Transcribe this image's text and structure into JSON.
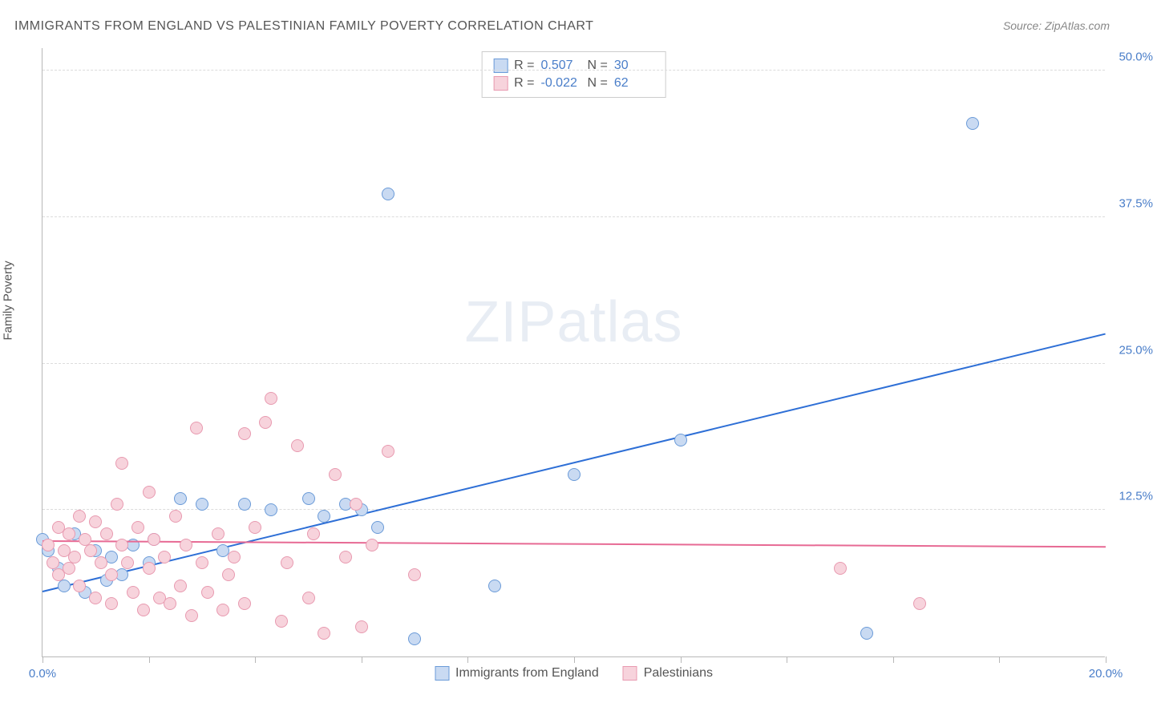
{
  "title": "IMMIGRANTS FROM ENGLAND VS PALESTINIAN FAMILY POVERTY CORRELATION CHART",
  "source": "Source: ZipAtlas.com",
  "ylabel": "Family Poverty",
  "watermark_a": "ZIP",
  "watermark_b": "atlas",
  "chart": {
    "type": "scatter",
    "background_color": "#ffffff",
    "grid_color": "#dcdcdc",
    "axis_color": "#b8b8b8",
    "xlim": [
      0,
      20
    ],
    "ylim": [
      0,
      52
    ],
    "xticks": [
      0,
      2,
      4,
      6,
      8,
      10,
      12,
      14,
      16,
      18,
      20
    ],
    "xtick_labels": {
      "0": "0.0%",
      "20": "20.0%"
    },
    "yticks": [
      12.5,
      25.0,
      37.5,
      50.0
    ],
    "ytick_labels": [
      "12.5%",
      "25.0%",
      "37.5%",
      "50.0%"
    ],
    "label_color": "#4a7ec9",
    "label_fontsize": 15,
    "series": [
      {
        "name": "Immigrants from England",
        "color_fill": "#c9daf2",
        "color_stroke": "#6b9bd8",
        "marker_radius": 8,
        "R": "0.507",
        "N": "30",
        "trend": {
          "x1": 0,
          "y1": 5.5,
          "x2": 20,
          "y2": 27.5,
          "color": "#2e6fd6",
          "width": 2
        },
        "points": [
          [
            0.0,
            10.0
          ],
          [
            0.1,
            9.0
          ],
          [
            0.3,
            7.5
          ],
          [
            0.4,
            6.0
          ],
          [
            0.6,
            10.5
          ],
          [
            0.8,
            5.5
          ],
          [
            1.0,
            9.0
          ],
          [
            1.2,
            6.5
          ],
          [
            1.3,
            8.5
          ],
          [
            1.5,
            7.0
          ],
          [
            1.7,
            9.5
          ],
          [
            2.0,
            8.0
          ],
          [
            2.1,
            10.0
          ],
          [
            2.6,
            13.5
          ],
          [
            3.0,
            13.0
          ],
          [
            3.4,
            9.0
          ],
          [
            3.8,
            13.0
          ],
          [
            4.3,
            12.5
          ],
          [
            5.0,
            13.5
          ],
          [
            5.3,
            12.0
          ],
          [
            5.7,
            13.0
          ],
          [
            6.0,
            12.5
          ],
          [
            6.3,
            11.0
          ],
          [
            6.5,
            39.5
          ],
          [
            7.0,
            1.5
          ],
          [
            8.5,
            6.0
          ],
          [
            10.0,
            15.5
          ],
          [
            12.0,
            18.5
          ],
          [
            15.5,
            2.0
          ],
          [
            17.5,
            45.5
          ]
        ]
      },
      {
        "name": "Palestinians",
        "color_fill": "#f7d3dc",
        "color_stroke": "#e89ab0",
        "marker_radius": 8,
        "R": "-0.022",
        "N": "62",
        "trend": {
          "x1": 0,
          "y1": 9.8,
          "x2": 20,
          "y2": 9.3,
          "color": "#e76a94",
          "width": 2
        },
        "points": [
          [
            0.1,
            9.5
          ],
          [
            0.2,
            8.0
          ],
          [
            0.3,
            11.0
          ],
          [
            0.3,
            7.0
          ],
          [
            0.4,
            9.0
          ],
          [
            0.5,
            10.5
          ],
          [
            0.5,
            7.5
          ],
          [
            0.6,
            8.5
          ],
          [
            0.7,
            12.0
          ],
          [
            0.7,
            6.0
          ],
          [
            0.8,
            10.0
          ],
          [
            0.9,
            9.0
          ],
          [
            1.0,
            11.5
          ],
          [
            1.0,
            5.0
          ],
          [
            1.1,
            8.0
          ],
          [
            1.2,
            10.5
          ],
          [
            1.3,
            7.0
          ],
          [
            1.3,
            4.5
          ],
          [
            1.5,
            16.5
          ],
          [
            1.5,
            9.5
          ],
          [
            1.6,
            8.0
          ],
          [
            1.7,
            5.5
          ],
          [
            1.8,
            11.0
          ],
          [
            1.9,
            4.0
          ],
          [
            2.0,
            14.0
          ],
          [
            2.0,
            7.5
          ],
          [
            2.1,
            10.0
          ],
          [
            2.2,
            5.0
          ],
          [
            2.3,
            8.5
          ],
          [
            2.4,
            4.5
          ],
          [
            2.5,
            12.0
          ],
          [
            2.6,
            6.0
          ],
          [
            2.7,
            9.5
          ],
          [
            2.8,
            3.5
          ],
          [
            2.9,
            19.5
          ],
          [
            3.0,
            8.0
          ],
          [
            3.1,
            5.5
          ],
          [
            3.3,
            10.5
          ],
          [
            3.4,
            4.0
          ],
          [
            3.5,
            7.0
          ],
          [
            3.6,
            8.5
          ],
          [
            3.8,
            19.0
          ],
          [
            3.8,
            4.5
          ],
          [
            4.0,
            11.0
          ],
          [
            4.2,
            20.0
          ],
          [
            4.3,
            22.0
          ],
          [
            4.5,
            3.0
          ],
          [
            4.6,
            8.0
          ],
          [
            4.8,
            18.0
          ],
          [
            5.0,
            5.0
          ],
          [
            5.1,
            10.5
          ],
          [
            5.3,
            2.0
          ],
          [
            5.5,
            15.5
          ],
          [
            5.7,
            8.5
          ],
          [
            5.9,
            13.0
          ],
          [
            6.0,
            2.5
          ],
          [
            6.2,
            9.5
          ],
          [
            6.5,
            17.5
          ],
          [
            7.0,
            7.0
          ],
          [
            15.0,
            7.5
          ],
          [
            16.5,
            4.5
          ],
          [
            1.4,
            13.0
          ]
        ]
      }
    ]
  },
  "legend": {
    "r_label": "R =",
    "n_label": "N ="
  }
}
